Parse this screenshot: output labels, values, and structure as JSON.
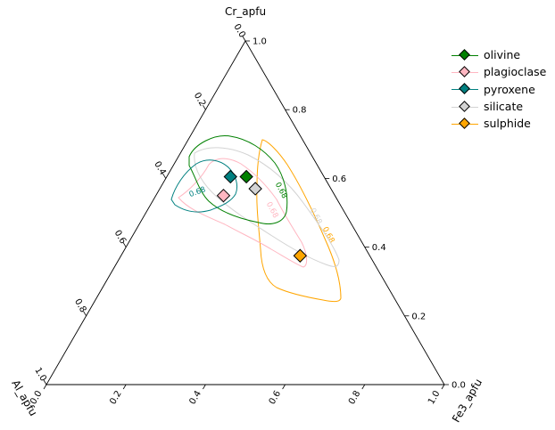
{
  "chart_data": {
    "type": "scatter",
    "title": "",
    "axes": {
      "top": "Cr_apfu",
      "left": "Al_apfu",
      "right": "Fe3_apfu"
    },
    "ticks": [
      "0.0",
      "0.2",
      "0.4",
      "0.6",
      "0.8",
      "1.0"
    ],
    "legend_position": "top-right",
    "series": [
      {
        "name": "olivine",
        "color": "#008000",
        "point": {
          "Cr": 0.605,
          "Fe3": 0.2,
          "Al": 0.195
        }
      },
      {
        "name": "plagioclase",
        "color": "#ffb6c1",
        "point": {
          "Cr": 0.55,
          "Fe3": 0.17,
          "Al": 0.28
        }
      },
      {
        "name": "pyroxene",
        "color": "#008080",
        "point": {
          "Cr": 0.605,
          "Fe3": 0.16,
          "Al": 0.235
        }
      },
      {
        "name": "silicate",
        "color": "#d3d3d3",
        "point": {
          "Cr": 0.57,
          "Fe3": 0.24,
          "Al": 0.19
        }
      },
      {
        "name": "sulphide",
        "color": "#ffa500",
        "point": {
          "Cr": 0.375,
          "Fe3": 0.45,
          "Al": 0.175
        }
      }
    ],
    "contour_level_label": "0.68"
  }
}
